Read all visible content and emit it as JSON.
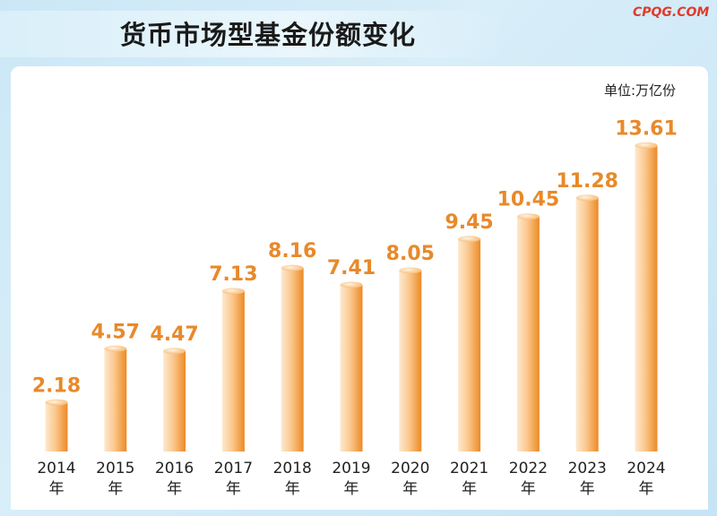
{
  "header": {
    "title": "货币市场型基金份额变化",
    "watermark": "CPQG.COM",
    "unit": "单位:万亿份"
  },
  "chart_data": {
    "type": "bar",
    "title": "货币市场型基金份额变化",
    "unit_label": "单位:万亿份",
    "categories": [
      "2014",
      "2015",
      "2016",
      "2017",
      "2018",
      "2019",
      "2020",
      "2021",
      "2022",
      "2023",
      "2024"
    ],
    "category_suffix": "年",
    "values": [
      2.18,
      4.57,
      4.47,
      7.13,
      8.16,
      7.41,
      8.05,
      9.45,
      10.45,
      11.28,
      13.61
    ],
    "value_labels": [
      "2.18",
      "4.57",
      "4.47",
      "7.13",
      "8.16",
      "7.41",
      "8.05",
      "9.45",
      "10.45",
      "11.28",
      "13.61"
    ],
    "ylim": [
      0,
      15
    ],
    "grid": false,
    "colors": {
      "bar_light": "#fde6c6",
      "bar_dark": "#ef8e2c",
      "label": "#e8892a"
    }
  }
}
